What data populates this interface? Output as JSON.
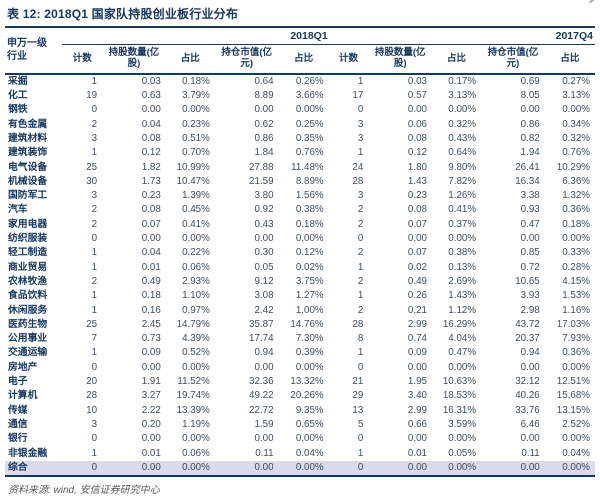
{
  "title": "表 12: 2018Q1 国家队持股创业板行业分布",
  "source_note": "资料来源: wind, 安信证券研究中心",
  "colors": {
    "navy": "#17375e",
    "number_text": "#3d4d63",
    "highlight_row_bg": "#dcdaed",
    "source_text": "#595959"
  },
  "table": {
    "row_header_label": "申万一级\n行业",
    "groups": [
      {
        "label": "2018Q1",
        "columns": [
          "计数",
          "持股数量(亿股)",
          "占比",
          "持仓市值(亿元)",
          "占比"
        ]
      },
      {
        "label": "2017Q4",
        "columns": [
          "计数",
          "持股数量(亿股)",
          "占比",
          "持仓市值(亿元)",
          "占比"
        ]
      }
    ],
    "rows": [
      {
        "industry": "采掘",
        "q1": [
          "1",
          "0.03",
          "0.18%",
          "0.64",
          "0.26%"
        ],
        "q4": [
          "1",
          "0.03",
          "0.17%",
          "0.69",
          "0.27%"
        ],
        "highlight": false
      },
      {
        "industry": "化工",
        "q1": [
          "19",
          "0.63",
          "3.79%",
          "8.89",
          "3.66%"
        ],
        "q4": [
          "17",
          "0.57",
          "3.13%",
          "8.05",
          "3.13%"
        ],
        "highlight": false
      },
      {
        "industry": "钢铁",
        "q1": [
          "0",
          "0.00",
          "0.00%",
          "0.00",
          "0.00%"
        ],
        "q4": [
          "0",
          "0.00",
          "0.00%",
          "0.00",
          "0.00%"
        ],
        "highlight": false
      },
      {
        "industry": "有色金属",
        "q1": [
          "2",
          "0.04",
          "0.23%",
          "0.62",
          "0.25%"
        ],
        "q4": [
          "3",
          "0.06",
          "0.32%",
          "0.86",
          "0.34%"
        ],
        "highlight": false
      },
      {
        "industry": "建筑材料",
        "q1": [
          "3",
          "0.08",
          "0.51%",
          "0.86",
          "0.35%"
        ],
        "q4": [
          "3",
          "0.08",
          "0.43%",
          "0.82",
          "0.32%"
        ],
        "highlight": false
      },
      {
        "industry": "建筑装饰",
        "q1": [
          "1",
          "0.12",
          "0.70%",
          "1.84",
          "0.76%"
        ],
        "q4": [
          "1",
          "0.12",
          "0.64%",
          "1.94",
          "0.76%"
        ],
        "highlight": false
      },
      {
        "industry": "电气设备",
        "q1": [
          "25",
          "1.82",
          "10.99%",
          "27.88",
          "11.48%"
        ],
        "q4": [
          "24",
          "1.80",
          "9.80%",
          "26.41",
          "10.29%"
        ],
        "highlight": false
      },
      {
        "industry": "机械设备",
        "q1": [
          "30",
          "1.73",
          "10.47%",
          "21.59",
          "8.89%"
        ],
        "q4": [
          "28",
          "1.43",
          "7.82%",
          "16.34",
          "6.36%"
        ],
        "highlight": false
      },
      {
        "industry": "国防军工",
        "q1": [
          "3",
          "0.23",
          "1.39%",
          "3.80",
          "1.56%"
        ],
        "q4": [
          "3",
          "0.23",
          "1.26%",
          "3.38",
          "1.32%"
        ],
        "highlight": false
      },
      {
        "industry": "汽车",
        "q1": [
          "2",
          "0.08",
          "0.45%",
          "0.92",
          "0.38%"
        ],
        "q4": [
          "2",
          "0.08",
          "0.41%",
          "0.93",
          "0.36%"
        ],
        "highlight": false
      },
      {
        "industry": "家用电器",
        "q1": [
          "2",
          "0.07",
          "0.41%",
          "0.43",
          "0.18%"
        ],
        "q4": [
          "2",
          "0.07",
          "0.37%",
          "0.47",
          "0.18%"
        ],
        "highlight": false
      },
      {
        "industry": "纺织服装",
        "q1": [
          "0",
          "0.00",
          "0.00%",
          "0.00",
          "0.00%"
        ],
        "q4": [
          "0",
          "0.00",
          "0.00%",
          "0.00",
          "0.00%"
        ],
        "highlight": false
      },
      {
        "industry": "轻工制造",
        "q1": [
          "1",
          "0.04",
          "0.22%",
          "0.30",
          "0.12%"
        ],
        "q4": [
          "2",
          "0.07",
          "0.38%",
          "0.85",
          "0.33%"
        ],
        "highlight": false
      },
      {
        "industry": "商业贸易",
        "q1": [
          "1",
          "0.01",
          "0.06%",
          "0.05",
          "0.02%"
        ],
        "q4": [
          "1",
          "0.02",
          "0.13%",
          "0.72",
          "0.28%"
        ],
        "highlight": false
      },
      {
        "industry": "农林牧渔",
        "q1": [
          "2",
          "0.49",
          "2.93%",
          "9.12",
          "3.75%"
        ],
        "q4": [
          "2",
          "0.49",
          "2.69%",
          "10.65",
          "4.15%"
        ],
        "highlight": false
      },
      {
        "industry": "食品饮料",
        "q1": [
          "1",
          "0.18",
          "1.10%",
          "3.08",
          "1.27%"
        ],
        "q4": [
          "1",
          "0.26",
          "1.43%",
          "3.93",
          "1.53%"
        ],
        "highlight": false
      },
      {
        "industry": "休闲服务",
        "q1": [
          "1",
          "0.16",
          "0.97%",
          "2.42",
          "1.00%"
        ],
        "q4": [
          "2",
          "0.21",
          "1.12%",
          "2.98",
          "1.16%"
        ],
        "highlight": false
      },
      {
        "industry": "医药生物",
        "q1": [
          "25",
          "2.45",
          "14.79%",
          "35.87",
          "14.76%"
        ],
        "q4": [
          "28",
          "2.99",
          "16.29%",
          "43.72",
          "17.03%"
        ],
        "highlight": false
      },
      {
        "industry": "公用事业",
        "q1": [
          "7",
          "0.73",
          "4.39%",
          "17.74",
          "7.30%"
        ],
        "q4": [
          "8",
          "0.74",
          "4.04%",
          "20.37",
          "7.93%"
        ],
        "highlight": false
      },
      {
        "industry": "交通运输",
        "q1": [
          "1",
          "0.09",
          "0.52%",
          "0.94",
          "0.39%"
        ],
        "q4": [
          "1",
          "0.09",
          "0.47%",
          "0.94",
          "0.36%"
        ],
        "highlight": false
      },
      {
        "industry": "房地产",
        "q1": [
          "0",
          "0.00",
          "0.00%",
          "0.00",
          "0.00%"
        ],
        "q4": [
          "0",
          "0.00",
          "0.00%",
          "0.00",
          "0.00%"
        ],
        "highlight": false
      },
      {
        "industry": "电子",
        "q1": [
          "20",
          "1.91",
          "11.52%",
          "32.36",
          "13.32%"
        ],
        "q4": [
          "21",
          "1.95",
          "10.63%",
          "32.12",
          "12.51%"
        ],
        "highlight": false
      },
      {
        "industry": "计算机",
        "q1": [
          "28",
          "3.27",
          "19.74%",
          "49.22",
          "20.26%"
        ],
        "q4": [
          "29",
          "3.40",
          "18.53%",
          "40.26",
          "15.68%"
        ],
        "highlight": false
      },
      {
        "industry": "传媒",
        "q1": [
          "10",
          "2.22",
          "13.39%",
          "22.72",
          "9.35%"
        ],
        "q4": [
          "13",
          "2.99",
          "16.31%",
          "33.76",
          "13.15%"
        ],
        "highlight": false
      },
      {
        "industry": "通信",
        "q1": [
          "3",
          "0.20",
          "1.19%",
          "1.59",
          "0.65%"
        ],
        "q4": [
          "5",
          "0.66",
          "3.59%",
          "6.46",
          "2.52%"
        ],
        "highlight": false
      },
      {
        "industry": "银行",
        "q1": [
          "0",
          "0.00",
          "0.00%",
          "0.00",
          "0.00%"
        ],
        "q4": [
          "0",
          "0.00",
          "0.00%",
          "0.00",
          "0.00%"
        ],
        "highlight": false
      },
      {
        "industry": "非银金融",
        "q1": [
          "1",
          "0.01",
          "0.06%",
          "0.11",
          "0.04%"
        ],
        "q4": [
          "1",
          "0.01",
          "0.05%",
          "0.11",
          "0.04%"
        ],
        "highlight": false
      },
      {
        "industry": "综合",
        "q1": [
          "0",
          "0.00",
          "0.00%",
          "0.00",
          "0.00%"
        ],
        "q4": [
          "0",
          "0.00",
          "0.00%",
          "0.00",
          "0.00%"
        ],
        "highlight": true
      }
    ]
  }
}
